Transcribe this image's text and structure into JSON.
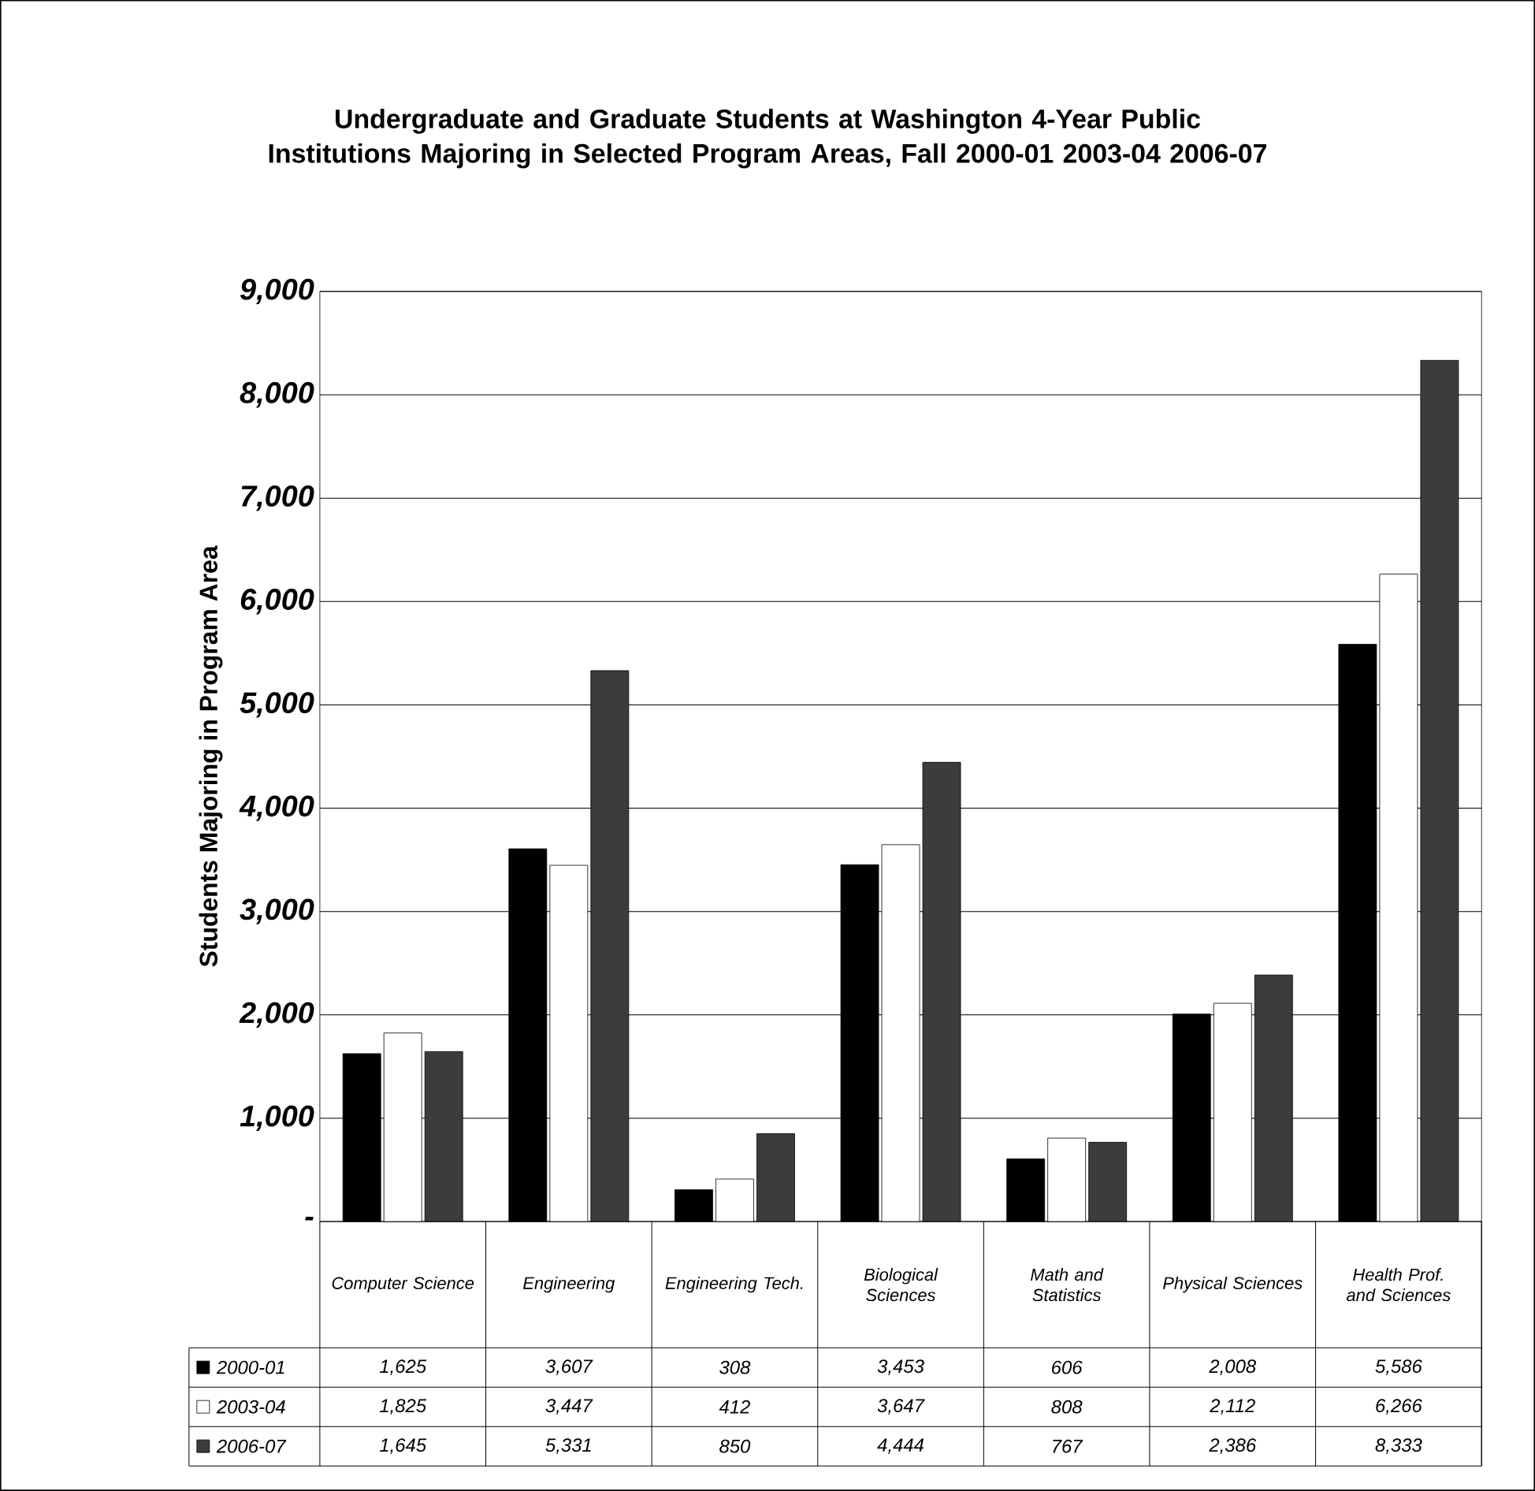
{
  "chart_data": {
    "type": "bar",
    "title": "Undergraduate and Graduate Students at Washington 4-Year Public Institutions Majoring in Selected Program Areas, Fall 2000-01 2003-04 2006-07",
    "ylabel": "Students Majoring in Program Area",
    "categories": [
      "Computer Science",
      "Engineering",
      "Engineering Tech.",
      "Biological Sciences",
      "Math and Statistics",
      "Physical Sciences",
      "Health Prof. and Sciences"
    ],
    "series": [
      {
        "name": "2000-01",
        "color": "#000000",
        "values": [
          1625,
          3607,
          308,
          3453,
          606,
          2008,
          5586
        ],
        "value_labels": [
          "1,625",
          "3,607",
          "308",
          "3,453",
          "606",
          "2,008",
          "5,586"
        ]
      },
      {
        "name": "2003-04",
        "color": "#ffffff",
        "values": [
          1825,
          3447,
          412,
          3647,
          808,
          2112,
          6266
        ],
        "value_labels": [
          "1,825",
          "3,447",
          "412",
          "3,647",
          "808",
          "2,112",
          "6,266"
        ]
      },
      {
        "name": "2006-07",
        "color": "#3c3c3c",
        "values": [
          1645,
          5331,
          850,
          4444,
          767,
          2386,
          8333
        ],
        "value_labels": [
          "1,645",
          "5,331",
          "850",
          "4,444",
          "767",
          "2,386",
          "8,333"
        ]
      }
    ],
    "ylim": [
      0,
      9000
    ],
    "yticks": [
      {
        "value": 0,
        "label": "-"
      },
      {
        "value": 1000,
        "label": "1,000"
      },
      {
        "value": 2000,
        "label": "2,000"
      },
      {
        "value": 3000,
        "label": "3,000"
      },
      {
        "value": 4000,
        "label": "4,000"
      },
      {
        "value": 5000,
        "label": "5,000"
      },
      {
        "value": 6000,
        "label": "6,000"
      },
      {
        "value": 7000,
        "label": "7,000"
      },
      {
        "value": 8000,
        "label": "8,000"
      },
      {
        "value": 9000,
        "label": "9,000"
      }
    ],
    "grid": "y",
    "legend": "bottom"
  }
}
